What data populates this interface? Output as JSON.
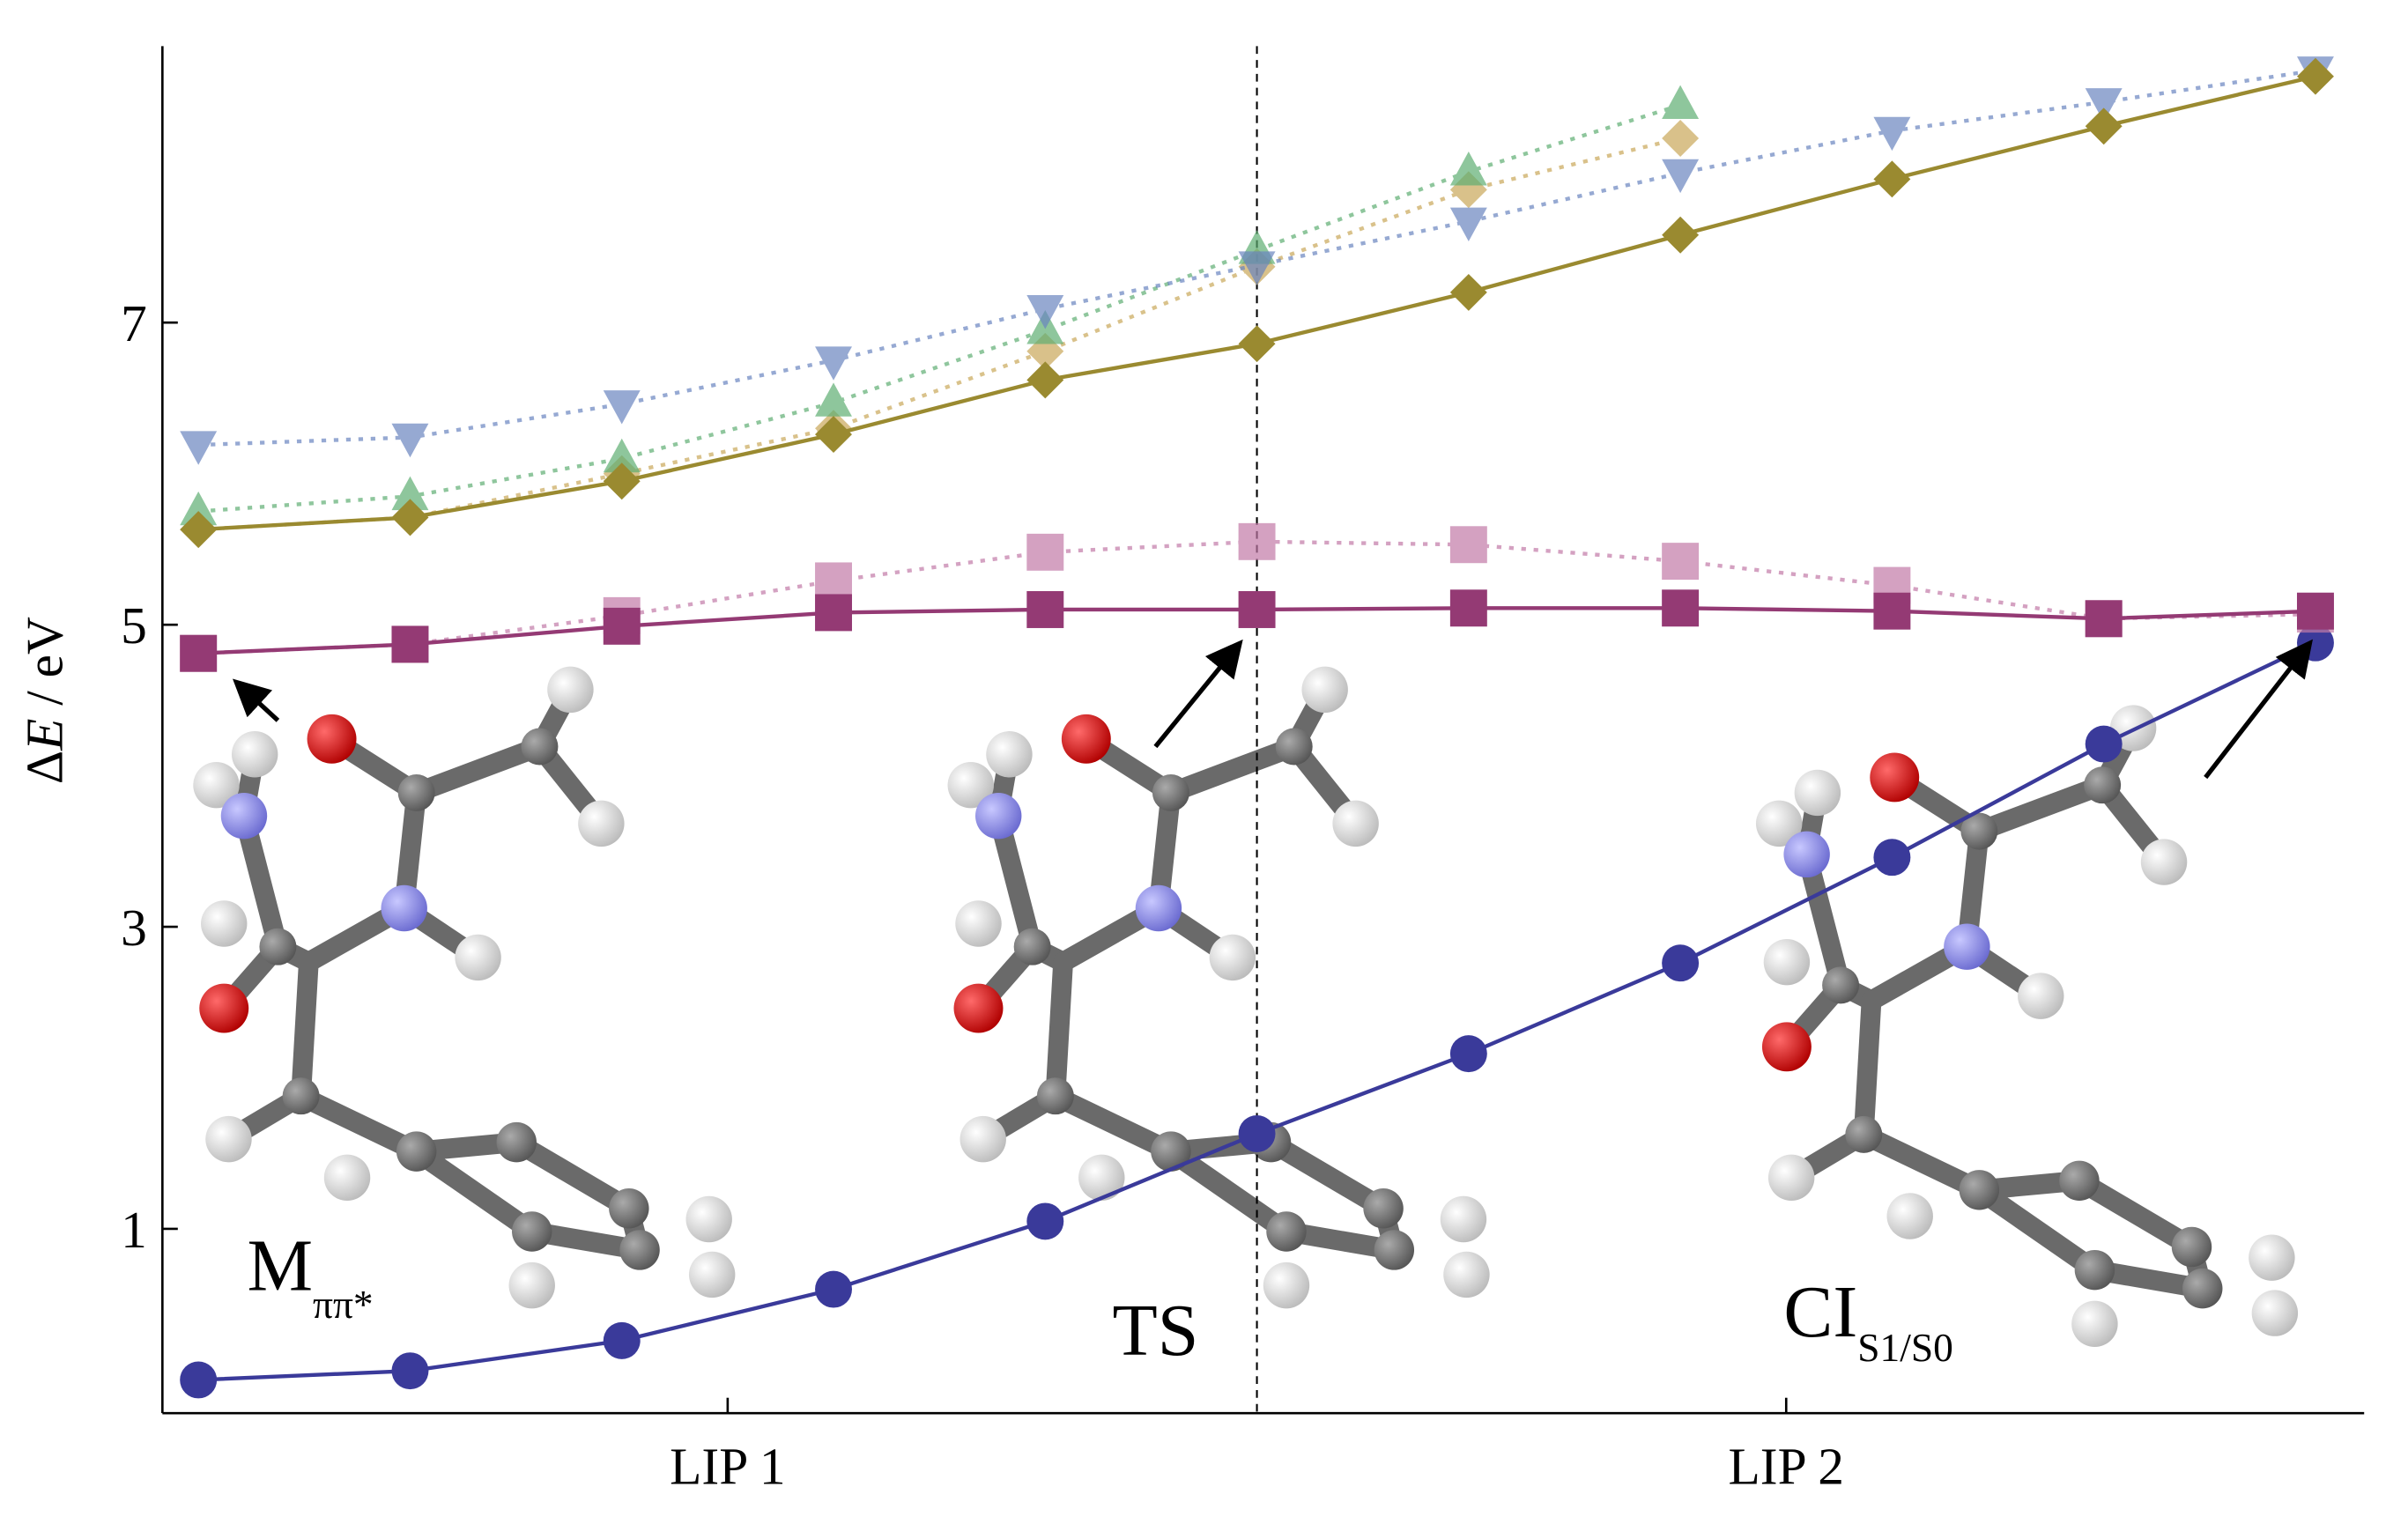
{
  "chart_data": {
    "type": "line",
    "y_label": [
      "Δ",
      "E",
      " / eV"
    ],
    "x": [
      0,
      1,
      2,
      3,
      4,
      5,
      6,
      7,
      8,
      9,
      10
    ],
    "xlim": [
      -0.17,
      10.23
    ],
    "xticks": [
      {
        "value": 2.5,
        "label": "LIP 1"
      },
      {
        "value": 7.5,
        "label": "LIP 2"
      }
    ],
    "ylim": [
      -0.22,
      8.83
    ],
    "yticks": [
      1,
      3,
      5,
      7
    ],
    "vline": 5,
    "series": [
      {
        "color": "#3a3a9a",
        "marker": "circle",
        "line_style": "solid",
        "values": [
          0,
          0.06,
          0.26,
          0.6,
          1.05,
          1.63,
          2.16,
          2.76,
          3.46,
          4.21,
          4.88
        ]
      },
      {
        "color": "#c27aa8",
        "marker": "square",
        "line_style": "dotted",
        "values": [
          4.81,
          4.87,
          5.06,
          5.29,
          5.48,
          5.55,
          5.53,
          5.42,
          5.26,
          5.04,
          5.07
        ]
      },
      {
        "color": "#943a74",
        "marker": "square",
        "line_style": "solid",
        "values": [
          4.81,
          4.87,
          4.99,
          5.08,
          5.1,
          5.1,
          5.11,
          5.11,
          5.09,
          5.04,
          5.09
        ]
      },
      {
        "color": "#c9a85a",
        "marker": "diamond",
        "line_style": "dotted",
        "values": [
          5.63,
          5.71,
          6.0,
          6.3,
          6.81,
          7.37,
          7.88,
          8.22,
          null,
          null,
          null
        ]
      },
      {
        "color": "#5fae73",
        "marker": "triangle-up",
        "line_style": "dotted",
        "values": [
          5.75,
          5.85,
          6.1,
          6.47,
          6.95,
          7.48,
          8.0,
          8.44,
          null,
          null,
          null
        ]
      },
      {
        "color": "#6a85c0",
        "marker": "triangle-down",
        "line_style": "dotted",
        "values": [
          6.19,
          6.24,
          6.46,
          6.75,
          7.09,
          7.38,
          7.67,
          7.99,
          8.27,
          8.46,
          8.67
        ]
      },
      {
        "color": "#9a8a30",
        "marker": "diamond",
        "line_style": "solid",
        "values": [
          5.63,
          5.71,
          5.95,
          6.26,
          6.62,
          6.86,
          7.2,
          7.58,
          7.95,
          8.3,
          8.63
        ]
      }
    ],
    "annotations": [
      {
        "text": "M",
        "sub": "ππ*"
      },
      {
        "text": "TS"
      },
      {
        "text": "CI",
        "sub": "S1/S0"
      }
    ]
  }
}
